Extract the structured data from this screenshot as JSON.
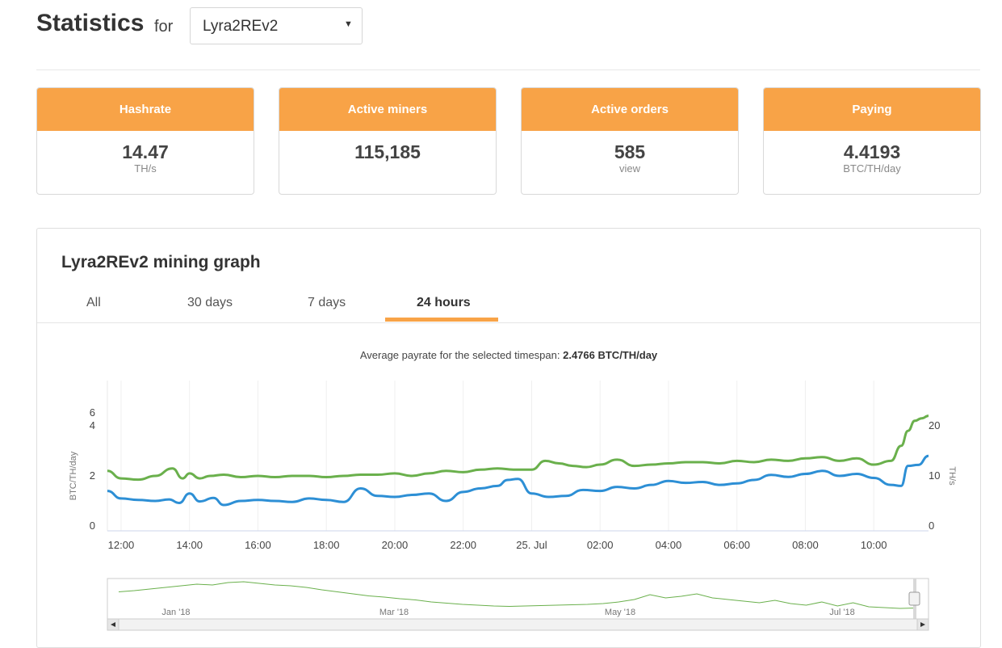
{
  "header": {
    "title": "Statistics",
    "for_label": "for",
    "selected_algorithm": "Lyra2REv2"
  },
  "cards": [
    {
      "label": "Hashrate",
      "value": "14.47",
      "unit": "TH/s"
    },
    {
      "label": "Active miners",
      "value": "115,185",
      "unit": ""
    },
    {
      "label": "Active orders",
      "value": "585",
      "unit": "view"
    },
    {
      "label": "Paying",
      "value": "4.4193",
      "unit": "BTC/TH/day"
    }
  ],
  "graph": {
    "title": "Lyra2REv2 mining graph",
    "tabs": [
      "All",
      "30 days",
      "7 days",
      "24 hours"
    ],
    "active_tab": "24 hours",
    "avg_label": "Average payrate for the selected timespan:",
    "avg_value": "2.4766 BTC/TH/day"
  },
  "chart_data": {
    "type": "line",
    "x_tick_labels": [
      "12:00",
      "14:00",
      "16:00",
      "18:00",
      "20:00",
      "22:00",
      "25. Jul",
      "02:00",
      "04:00",
      "06:00",
      "08:00",
      "10:00"
    ],
    "y_left": {
      "label": "BTC/TH/day",
      "ticks": [
        "0",
        "2",
        "4",
        "6"
      ],
      "range": [
        0,
        6
      ]
    },
    "y_right": {
      "label": "TH/s",
      "ticks": [
        "0",
        "10",
        "20"
      ],
      "range": [
        0,
        20
      ]
    },
    "x_range_hours": [
      -0.4,
      23.6
    ],
    "series": [
      {
        "color": "#6ab04c",
        "axis": "left",
        "x": [
          -0.4,
          0,
          0.5,
          1,
          1.5,
          1.8,
          2,
          2.3,
          2.6,
          3,
          3.5,
          4,
          4.5,
          5,
          5.5,
          6,
          6.5,
          7,
          7.5,
          8,
          8.5,
          9,
          9.5,
          10,
          10.5,
          11,
          11.5,
          12,
          12.4,
          12.8,
          13.2,
          13.6,
          14,
          14.5,
          15,
          15.5,
          16,
          16.5,
          17,
          17.5,
          18,
          18.5,
          19,
          19.5,
          20,
          20.5,
          21,
          21.5,
          22,
          22.5,
          22.8,
          23,
          23.2,
          23.4,
          23.6
        ],
        "y": [
          2.2,
          1.9,
          1.85,
          2.0,
          2.3,
          1.9,
          2.1,
          1.9,
          2.0,
          2.05,
          1.95,
          2.0,
          1.95,
          2.0,
          2.0,
          1.95,
          2.0,
          2.05,
          2.05,
          2.1,
          2.0,
          2.1,
          2.2,
          2.15,
          2.25,
          2.3,
          2.25,
          2.25,
          2.6,
          2.5,
          2.4,
          2.35,
          2.45,
          2.65,
          2.4,
          2.45,
          2.5,
          2.55,
          2.55,
          2.5,
          2.6,
          2.55,
          2.65,
          2.6,
          2.7,
          2.75,
          2.6,
          2.7,
          2.45,
          2.6,
          3.2,
          3.8,
          4.2,
          4.3,
          4.4
        ]
      },
      {
        "color": "#2d8fd5",
        "axis": "right",
        "x": [
          -0.4,
          0,
          0.5,
          1,
          1.4,
          1.7,
          2,
          2.3,
          2.7,
          3,
          3.5,
          4,
          4.5,
          5,
          5.5,
          6,
          6.5,
          7,
          7.5,
          8,
          8.5,
          9,
          9.5,
          10,
          10.5,
          11,
          11.3,
          11.6,
          12,
          12.5,
          13,
          13.5,
          14,
          14.5,
          15,
          15.5,
          16,
          16.5,
          17,
          17.5,
          18,
          18.5,
          19,
          19.5,
          20,
          20.5,
          21,
          21.5,
          22,
          22.5,
          22.8,
          23,
          23.3,
          23.6
        ],
        "y": [
          7.0,
          5.5,
          5.2,
          5.0,
          5.3,
          4.6,
          6.5,
          4.9,
          5.6,
          4.2,
          5.0,
          5.2,
          5.0,
          4.8,
          5.5,
          5.2,
          4.8,
          7.5,
          6.0,
          5.8,
          6.2,
          6.5,
          5.0,
          6.8,
          7.5,
          8.0,
          9.2,
          9.4,
          6.5,
          5.8,
          6.0,
          7.2,
          7.0,
          7.8,
          7.5,
          8.2,
          9.0,
          8.6,
          8.8,
          8.2,
          8.5,
          9.2,
          10.2,
          9.8,
          10.4,
          11.0,
          10.0,
          10.4,
          9.6,
          8.2,
          8.0,
          12.0,
          12.2,
          14.0
        ]
      }
    ],
    "navigator": {
      "x_tick_labels": [
        "Jan '18",
        "Mar '18",
        "May '18",
        "Jul '18"
      ],
      "series": [
        0.55,
        0.58,
        0.62,
        0.66,
        0.7,
        0.74,
        0.72,
        0.78,
        0.8,
        0.76,
        0.72,
        0.7,
        0.66,
        0.6,
        0.55,
        0.5,
        0.45,
        0.42,
        0.38,
        0.35,
        0.3,
        0.27,
        0.24,
        0.22,
        0.2,
        0.19,
        0.2,
        0.21,
        0.22,
        0.23,
        0.24,
        0.26,
        0.3,
        0.36,
        0.48,
        0.4,
        0.44,
        0.5,
        0.4,
        0.36,
        0.32,
        0.28,
        0.34,
        0.26,
        0.22,
        0.3,
        0.2,
        0.28,
        0.18,
        0.16,
        0.14,
        0.15
      ]
    }
  }
}
